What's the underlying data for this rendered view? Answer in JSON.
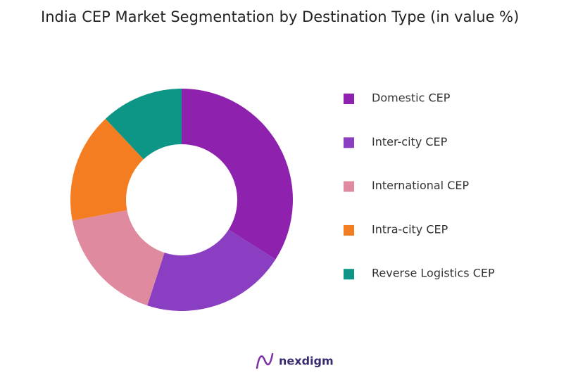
{
  "chart_data": {
    "type": "donut",
    "title": "India CEP Market Segmentation by Destination Type (in value %)",
    "categories": [
      "Domestic CEP",
      "Inter-city CEP",
      "International CEP",
      "Intra-city CEP",
      "Reverse Logistics CEP"
    ],
    "values": [
      34,
      21,
      17,
      16,
      12
    ],
    "colors": [
      "#8e21ad",
      "#8a3fc2",
      "#e08aa0",
      "#f47d22",
      "#0d9585"
    ],
    "legend": "right"
  },
  "logo": "nexdigm"
}
